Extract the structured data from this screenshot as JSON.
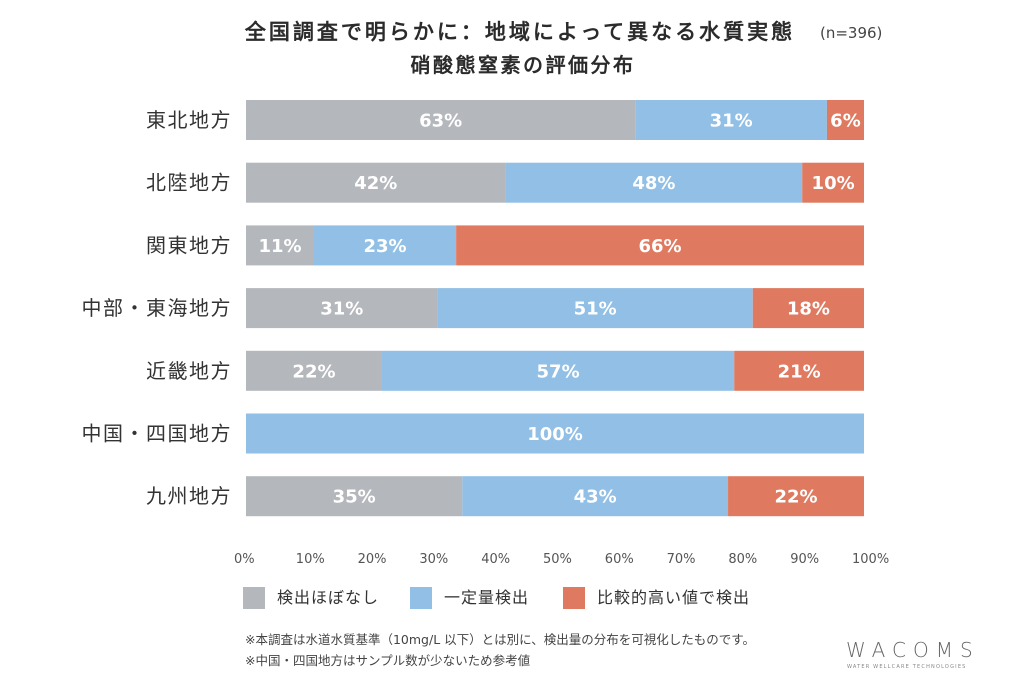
{
  "chart_data": {
    "type": "bar",
    "orientation": "horizontal",
    "stacked": true,
    "title": "全国調査で明らかに：地域によって異なる水質実態",
    "sample_size_label": "(n=396)",
    "subtitle": "硝酸態窒素の評価分布",
    "categories": [
      "東北地方",
      "北陸地方",
      "関東地方",
      "中部・東海地方",
      "近畿地方",
      "中国・四国地方",
      "九州地方"
    ],
    "series": [
      {
        "name": "検出ほぼなし",
        "color": "#b4b7bc",
        "values": [
          63,
          42,
          11,
          31,
          22,
          0,
          35
        ]
      },
      {
        "name": "一定量検出",
        "color": "#91bfe5",
        "values": [
          31,
          48,
          23,
          51,
          57,
          100,
          43
        ]
      },
      {
        "name": "比較的高い値で検出",
        "color": "#df7a61",
        "values": [
          6,
          10,
          66,
          18,
          21,
          0,
          22
        ]
      }
    ],
    "value_label_suffix": "%",
    "xlim": [
      0,
      100
    ],
    "x_ticks": [
      0,
      10,
      20,
      30,
      40,
      50,
      60,
      70,
      80,
      90,
      100
    ],
    "x_tick_labels": [
      "0%",
      "10%",
      "20%",
      "30%",
      "40%",
      "50%",
      "60%",
      "70%",
      "80%",
      "90%",
      "100%"
    ],
    "grid": false,
    "legend_position": "bottom-left"
  },
  "notes": [
    "※本調査は水道水質基準（10mg/L 以下）とは別に、検出量の分布を可視化したものです。",
    "※中国・四国地方はサンプル数が少ないため参考値"
  ],
  "logo": {
    "name": "WACOMS",
    "tagline": "WATER WELLCARE TECHNOLOGIES"
  }
}
